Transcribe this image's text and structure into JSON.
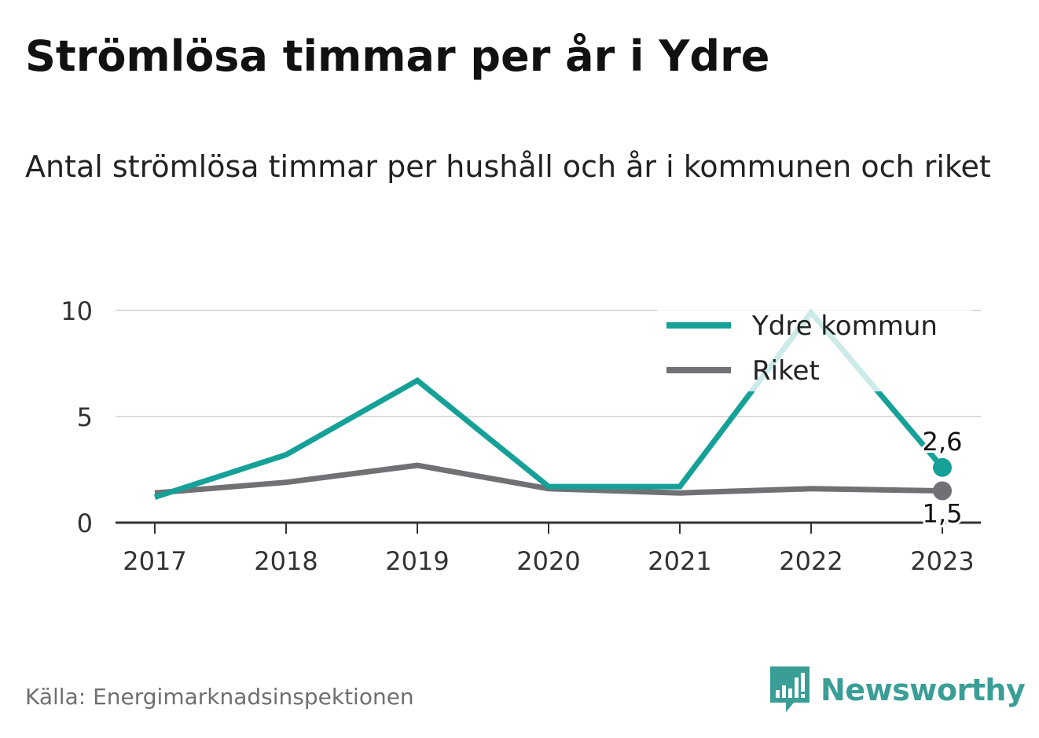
{
  "title": "Strömlösa timmar per år i Ydre",
  "subtitle": "Antal strömlösa timmar per hushåll och år i kommunen och riket",
  "source": "Källa: Energimarknadsinspektionen",
  "brand": "Newsworthy",
  "colors": {
    "ydre": "#16a198",
    "riket": "#707075",
    "brand": "#3a9e97"
  },
  "chart_data": {
    "type": "line",
    "x": [
      "2017",
      "2018",
      "2019",
      "2020",
      "2021",
      "2022",
      "2023"
    ],
    "ylim": [
      0,
      10
    ],
    "yticks": [
      0,
      5,
      10
    ],
    "grid": true,
    "legend_position": "top-right",
    "series": [
      {
        "name": "Ydre kommun",
        "color": "#16a198",
        "values": [
          1.2,
          3.2,
          6.7,
          1.7,
          1.7,
          9.9,
          2.6
        ],
        "end_label": "2,6"
      },
      {
        "name": "Riket",
        "color": "#707075",
        "values": [
          1.4,
          1.9,
          2.7,
          1.6,
          1.4,
          1.6,
          1.5
        ],
        "end_label": "1,5"
      }
    ]
  }
}
